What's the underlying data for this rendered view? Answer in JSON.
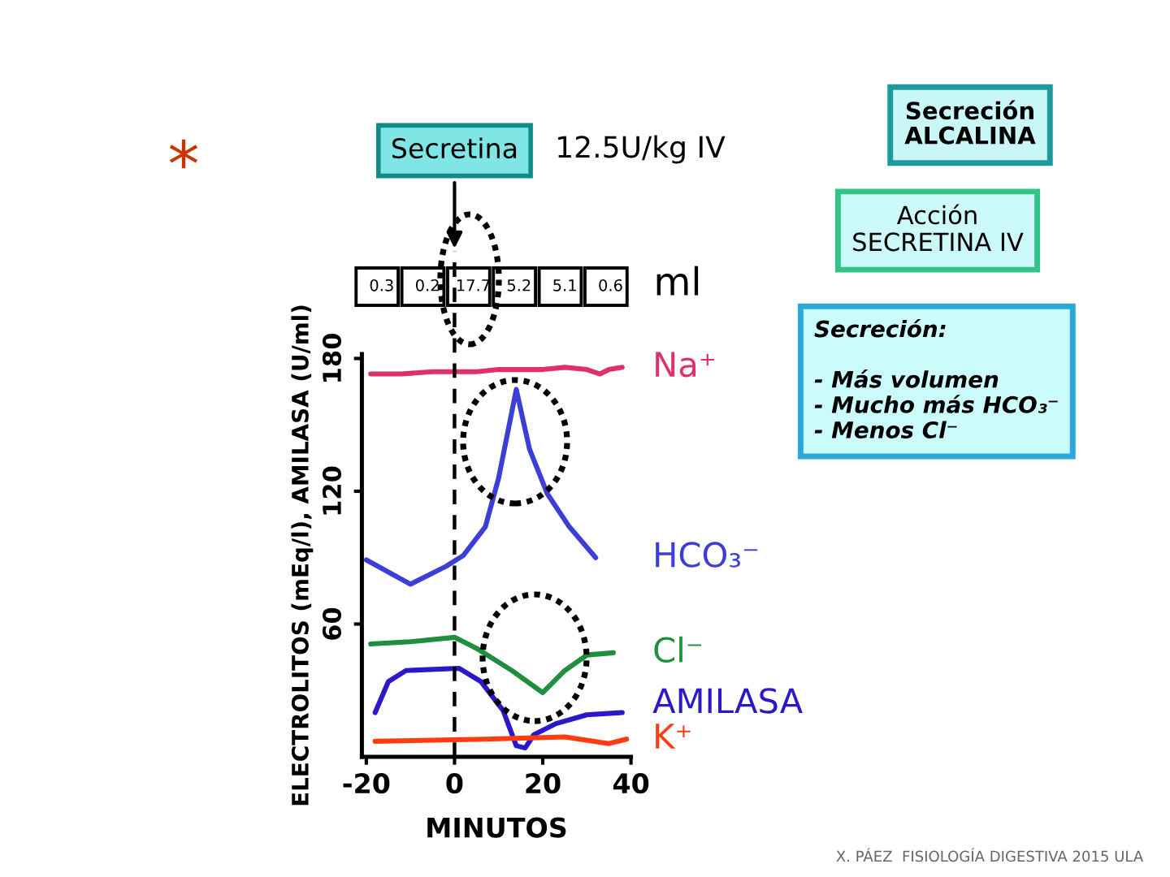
{
  "chart_data": [
    {
      "type": "other",
      "values": [
        0.3,
        0.2,
        17.7,
        5.2,
        5.1,
        0.6
      ],
      "data_labels": true,
      "annotations": [
        "ml"
      ]
    },
    {
      "type": "line",
      "xlabel": "MINUTOS",
      "ylabel": "ELECTROLITOS (mEq/l), AMILASA (U/ml)",
      "xlim": [
        -21,
        40
      ],
      "xticks": [
        -20,
        0,
        20,
        40
      ],
      "ylim": [
        0,
        182
      ],
      "yticks": [
        60,
        120,
        180
      ],
      "series": [
        {
          "name": "Na⁺",
          "color": "#e0306a",
          "x": [
            -19,
            -12,
            -5,
            0,
            5,
            10,
            15,
            20,
            25,
            30,
            33,
            35,
            38
          ],
          "values": [
            173,
            173,
            174,
            174,
            174,
            175,
            175,
            175,
            176,
            175,
            173,
            175,
            176
          ]
        },
        {
          "name": "HCO₃⁻",
          "color": "#3b3fd6",
          "x": [
            -20,
            -10,
            -2,
            2,
            7,
            10,
            14,
            17,
            21,
            26,
            32
          ],
          "values": [
            89,
            78,
            86,
            91,
            104,
            126,
            166,
            139,
            119,
            104,
            90
          ]
        },
        {
          "name": "Cl⁻",
          "color": "#1f8f3f",
          "x": [
            -19,
            -10,
            0,
            5,
            13,
            20,
            25,
            30,
            36
          ],
          "values": [
            51,
            52,
            54,
            49,
            39,
            29,
            39,
            46,
            47
          ]
        },
        {
          "name": "AMILASA",
          "color": "#2b18c8",
          "x": [
            -18,
            -15,
            -11,
            1,
            6,
            11,
            14,
            16,
            18,
            23,
            30,
            38
          ],
          "values": [
            20,
            34,
            39,
            40,
            34,
            21,
            5,
            4,
            10,
            15,
            19,
            20
          ]
        },
        {
          "name": "K⁺",
          "color": "#ff3c10",
          "x": [
            -18,
            7,
            25,
            35,
            39
          ],
          "values": [
            7,
            8,
            9,
            6,
            8
          ]
        }
      ],
      "ref_lines": [
        {
          "axis": "x",
          "value": 0,
          "label": "Secretina",
          "line_style": "dashed",
          "color": "#000000"
        }
      ],
      "annotations": [
        "12.5U/kg IV",
        "*",
        "X. PÁEZ  FISIOLOGÍA DIGESTIVA 2015 ULA"
      ]
    },
    {
      "type": "other",
      "title": "Secreción ALCALINA",
      "subtitle": "Acción SECRETINA IV",
      "annotations": [
        "Secreción:",
        "- Más volumen",
        "- Mucho más HCO₃⁻",
        "- Menos Cl⁻"
      ]
    }
  ]
}
